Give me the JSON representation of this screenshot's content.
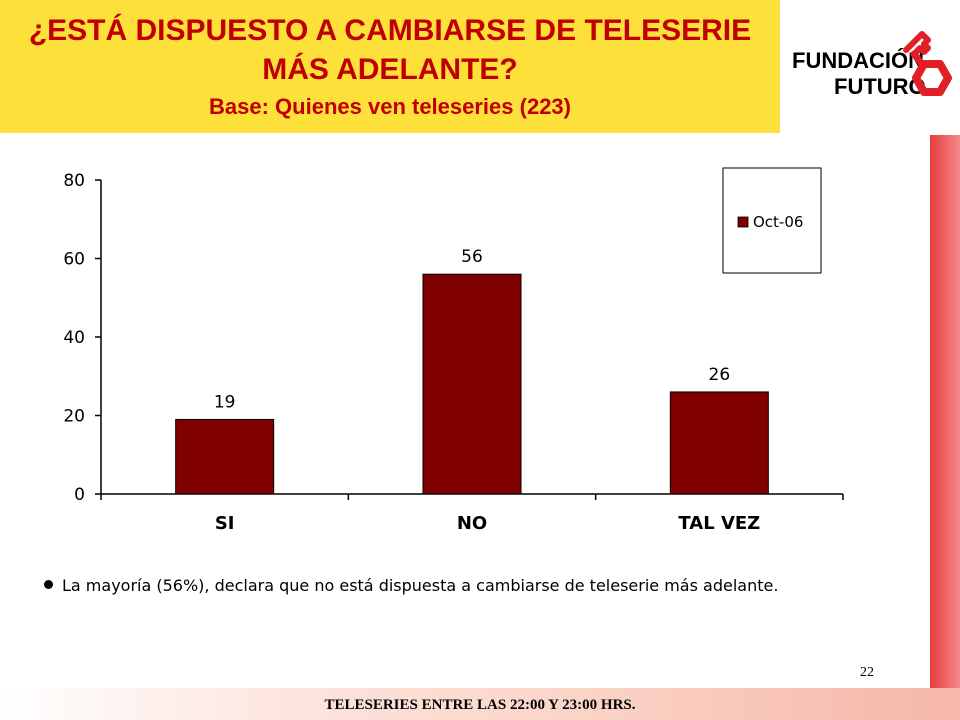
{
  "header": {
    "title_line1": "¿ESTÁ DISPUESTO A CAMBIARSE DE TELESERIE",
    "title_line2": "MÁS ADELANTE?",
    "subtitle": "Base: Quienes ven teleseries (223)"
  },
  "logo": {
    "line1": "FUNDACIÓN",
    "line2": "FUTURO",
    "icon": "key-icon"
  },
  "colors": {
    "header_bg": "#fde03a",
    "title": "#c00000",
    "bar": "#800000",
    "stripe": "#e83c3c"
  },
  "chart_data": {
    "type": "bar",
    "categories": [
      "SI",
      "NO",
      "TAL VEZ"
    ],
    "series": [
      {
        "name": "Oct-06",
        "values": [
          19,
          56,
          26
        ]
      }
    ],
    "data_labels": [
      "19",
      "56",
      "26"
    ],
    "ylim": [
      0,
      80
    ],
    "yticks": [
      "0",
      "20",
      "40",
      "60",
      "80"
    ],
    "legend_position": "top-right",
    "grid": false
  },
  "bullet": "La mayoría (56%), declara que no está dispuesta a cambiarse de teleserie más adelante.",
  "page_number": "22",
  "footer": "TELESERIES ENTRE LAS 22:00 Y 23:00 HRS."
}
